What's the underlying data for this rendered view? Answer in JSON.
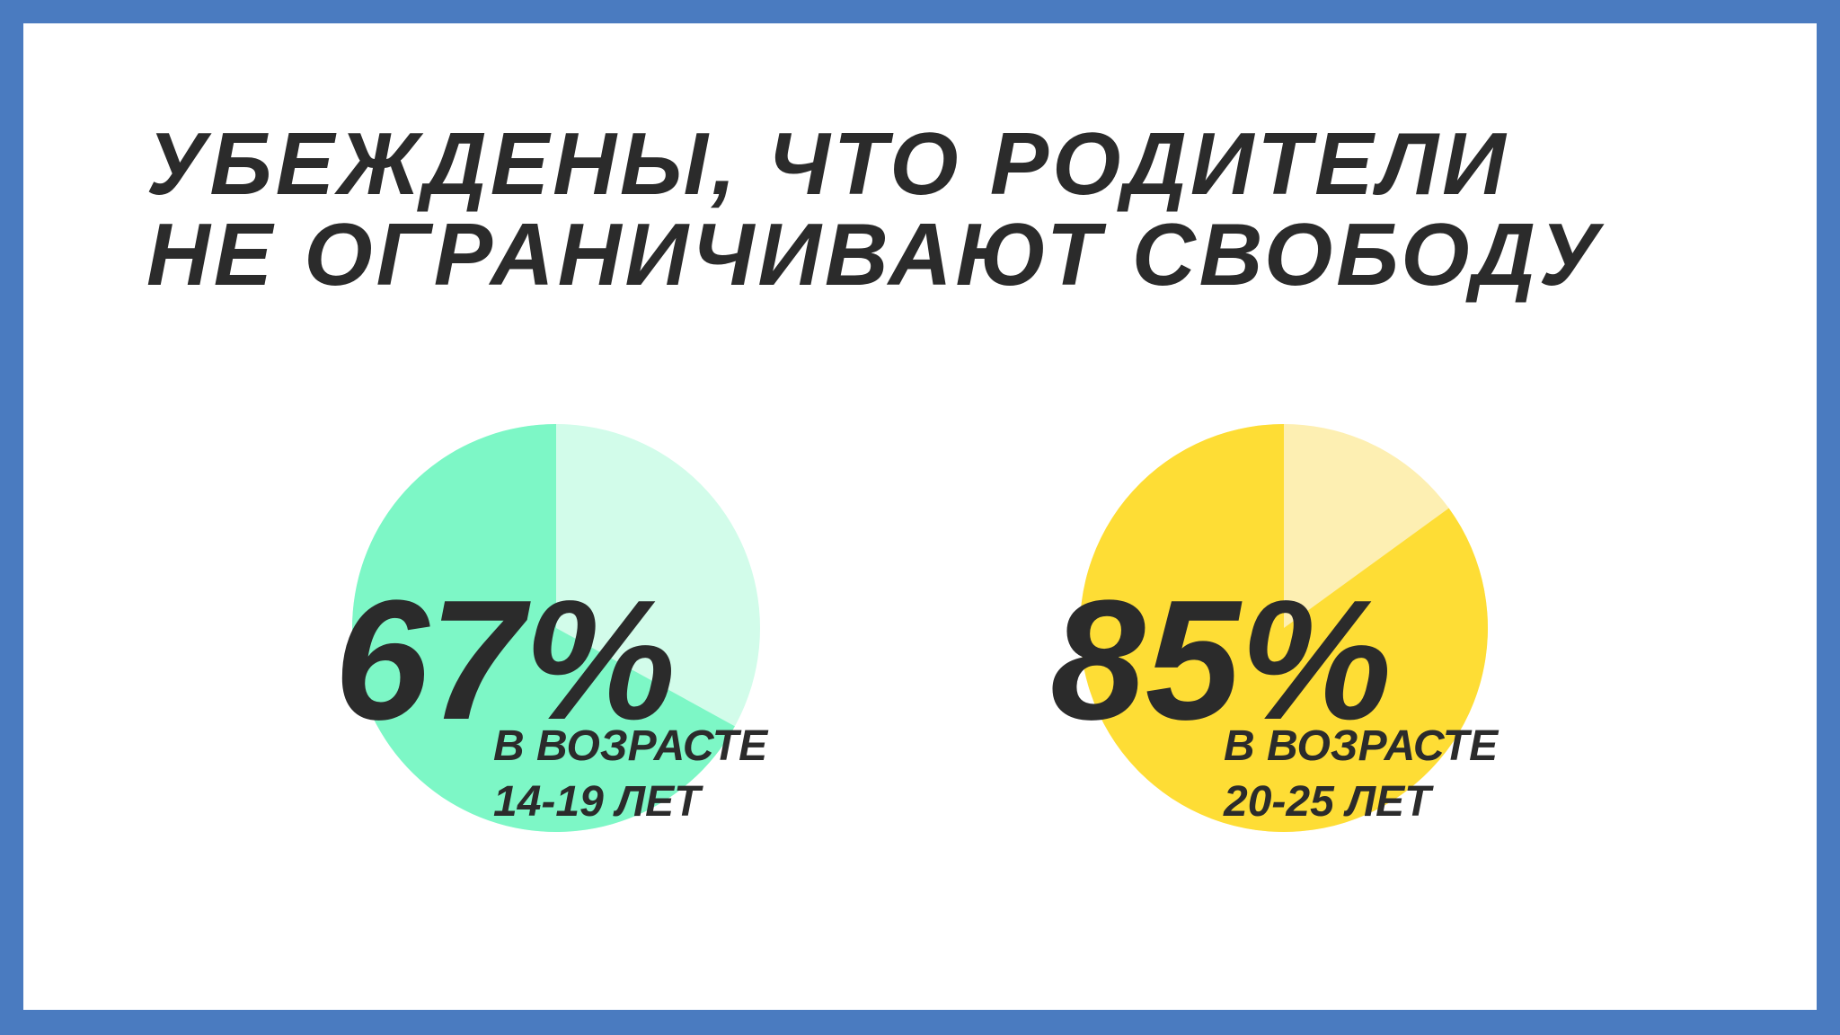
{
  "header": {
    "title_lines": [
      "УБЕЖДЕНЫ, ЧТО РОДИТЕЛИ",
      "НЕ ОГРАНИЧИВАЮТ СВОБОДУ"
    ]
  },
  "chart_data": [
    {
      "type": "pie",
      "values": [
        67
      ],
      "value_labels": [
        "67%"
      ],
      "color": "#7df7c6",
      "rest_color": "#d2fcea",
      "annotations": [
        "В ВОЗРАСТЕ",
        "14-19 ЛЕТ"
      ]
    },
    {
      "type": "pie",
      "values": [
        85
      ],
      "value_labels": [
        "85%"
      ],
      "color": "#fedd35",
      "rest_color": "#fdefb2",
      "annotations": [
        "В ВОЗРАСТЕ",
        "20-25 ЛЕТ"
      ]
    }
  ]
}
